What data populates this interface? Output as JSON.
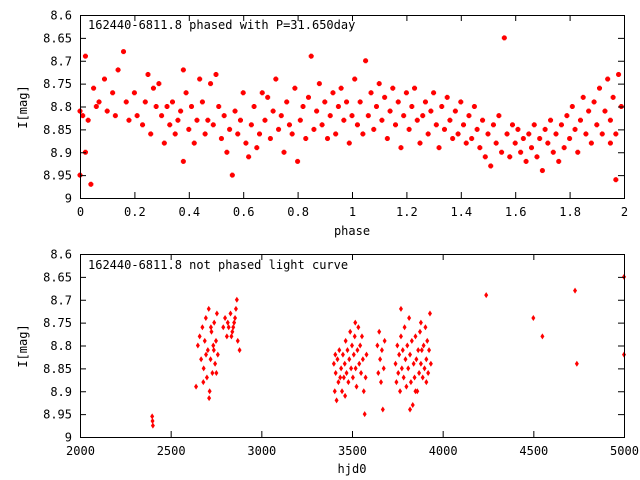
{
  "colors": {
    "points": "#ff0000",
    "axis": "#000000",
    "background": "#ffffff"
  },
  "chart_data": [
    {
      "type": "scatter",
      "title": "162440-6811.8 phased with P=31.650day",
      "xlabel": "phase",
      "ylabel": "I[mag]",
      "xlim": [
        0,
        2
      ],
      "ylim": [
        8.6,
        9.0
      ],
      "y_inverted": true,
      "grid": false,
      "xticks": [
        "0",
        "0.2",
        "0.4",
        "0.6",
        "0.8",
        "1",
        "1.2",
        "1.4",
        "1.6",
        "1.8",
        "2"
      ],
      "yticks": [
        "8.6",
        "8.65",
        "8.7",
        "8.75",
        "8.8",
        "8.85",
        "8.9",
        "8.95",
        "9"
      ],
      "marker": "star",
      "points": [
        [
          0.0,
          8.81
        ],
        [
          0.01,
          8.82
        ],
        [
          0.02,
          8.69
        ],
        [
          0.02,
          8.9
        ],
        [
          0.0,
          8.95
        ],
        [
          0.04,
          8.97
        ],
        [
          0.03,
          8.83
        ],
        [
          0.05,
          8.76
        ],
        [
          0.06,
          8.8
        ],
        [
          0.07,
          8.79
        ],
        [
          0.09,
          8.74
        ],
        [
          0.1,
          8.81
        ],
        [
          0.12,
          8.77
        ],
        [
          0.13,
          8.82
        ],
        [
          0.14,
          8.72
        ],
        [
          0.16,
          8.68
        ],
        [
          0.17,
          8.79
        ],
        [
          0.18,
          8.83
        ],
        [
          0.2,
          8.77
        ],
        [
          0.21,
          8.82
        ],
        [
          0.23,
          8.84
        ],
        [
          0.24,
          8.79
        ],
        [
          0.25,
          8.73
        ],
        [
          0.26,
          8.86
        ],
        [
          0.27,
          8.76
        ],
        [
          0.28,
          8.8
        ],
        [
          0.29,
          8.75
        ],
        [
          0.3,
          8.82
        ],
        [
          0.31,
          8.88
        ],
        [
          0.32,
          8.8
        ],
        [
          0.33,
          8.84
        ],
        [
          0.34,
          8.79
        ],
        [
          0.35,
          8.86
        ],
        [
          0.36,
          8.83
        ],
        [
          0.37,
          8.81
        ],
        [
          0.38,
          8.72
        ],
        [
          0.38,
          8.92
        ],
        [
          0.39,
          8.77
        ],
        [
          0.4,
          8.85
        ],
        [
          0.41,
          8.8
        ],
        [
          0.42,
          8.88
        ],
        [
          0.43,
          8.83
        ],
        [
          0.44,
          8.74
        ],
        [
          0.45,
          8.79
        ],
        [
          0.46,
          8.86
        ],
        [
          0.47,
          8.83
        ],
        [
          0.48,
          8.75
        ],
        [
          0.49,
          8.84
        ],
        [
          0.5,
          8.73
        ],
        [
          0.51,
          8.8
        ],
        [
          0.52,
          8.87
        ],
        [
          0.53,
          8.82
        ],
        [
          0.54,
          8.9
        ],
        [
          0.55,
          8.85
        ],
        [
          0.56,
          8.95
        ],
        [
          0.57,
          8.81
        ],
        [
          0.58,
          8.86
        ],
        [
          0.59,
          8.83
        ],
        [
          0.6,
          8.77
        ],
        [
          0.61,
          8.88
        ],
        [
          0.62,
          8.91
        ],
        [
          0.63,
          8.84
        ],
        [
          0.64,
          8.8
        ],
        [
          0.65,
          8.89
        ],
        [
          0.66,
          8.86
        ],
        [
          0.67,
          8.77
        ],
        [
          0.68,
          8.83
        ],
        [
          0.69,
          8.78
        ],
        [
          0.7,
          8.87
        ],
        [
          0.71,
          8.81
        ],
        [
          0.72,
          8.74
        ],
        [
          0.73,
          8.85
        ],
        [
          0.74,
          8.82
        ],
        [
          0.75,
          8.9
        ],
        [
          0.76,
          8.79
        ],
        [
          0.77,
          8.84
        ],
        [
          0.78,
          8.86
        ],
        [
          0.79,
          8.76
        ],
        [
          0.8,
          8.92
        ],
        [
          0.81,
          8.83
        ],
        [
          0.82,
          8.8
        ],
        [
          0.83,
          8.87
        ],
        [
          0.84,
          8.78
        ],
        [
          0.85,
          8.69
        ],
        [
          0.86,
          8.85
        ],
        [
          0.87,
          8.81
        ],
        [
          0.88,
          8.75
        ],
        [
          0.89,
          8.84
        ],
        [
          0.9,
          8.79
        ],
        [
          0.91,
          8.87
        ],
        [
          0.92,
          8.82
        ],
        [
          0.93,
          8.77
        ],
        [
          0.94,
          8.86
        ],
        [
          0.95,
          8.8
        ],
        [
          0.96,
          8.76
        ],
        [
          0.97,
          8.83
        ],
        [
          0.98,
          8.79
        ],
        [
          0.99,
          8.88
        ],
        [
          1.0,
          8.82
        ],
        [
          1.01,
          8.74
        ],
        [
          1.02,
          8.84
        ],
        [
          1.03,
          8.79
        ],
        [
          1.04,
          8.86
        ],
        [
          1.05,
          8.7
        ],
        [
          1.06,
          8.82
        ],
        [
          1.07,
          8.77
        ],
        [
          1.08,
          8.85
        ],
        [
          1.09,
          8.8
        ],
        [
          1.1,
          8.75
        ],
        [
          1.11,
          8.83
        ],
        [
          1.12,
          8.78
        ],
        [
          1.13,
          8.87
        ],
        [
          1.14,
          8.81
        ],
        [
          1.15,
          8.76
        ],
        [
          1.16,
          8.84
        ],
        [
          1.17,
          8.79
        ],
        [
          1.18,
          8.89
        ],
        [
          1.19,
          8.82
        ],
        [
          1.2,
          8.77
        ],
        [
          1.21,
          8.85
        ],
        [
          1.22,
          8.8
        ],
        [
          1.23,
          8.76
        ],
        [
          1.24,
          8.83
        ],
        [
          1.25,
          8.88
        ],
        [
          1.26,
          8.82
        ],
        [
          1.27,
          8.79
        ],
        [
          1.28,
          8.86
        ],
        [
          1.29,
          8.81
        ],
        [
          1.3,
          8.77
        ],
        [
          1.31,
          8.84
        ],
        [
          1.32,
          8.89
        ],
        [
          1.33,
          8.8
        ],
        [
          1.34,
          8.85
        ],
        [
          1.35,
          8.78
        ],
        [
          1.36,
          8.83
        ],
        [
          1.37,
          8.87
        ],
        [
          1.38,
          8.81
        ],
        [
          1.39,
          8.86
        ],
        [
          1.4,
          8.79
        ],
        [
          1.41,
          8.84
        ],
        [
          1.42,
          8.88
        ],
        [
          1.43,
          8.82
        ],
        [
          1.44,
          8.87
        ],
        [
          1.45,
          8.8
        ],
        [
          1.46,
          8.85
        ],
        [
          1.47,
          8.89
        ],
        [
          1.48,
          8.83
        ],
        [
          1.49,
          8.91
        ],
        [
          1.5,
          8.86
        ],
        [
          1.51,
          8.93
        ],
        [
          1.52,
          8.84
        ],
        [
          1.53,
          8.88
        ],
        [
          1.54,
          8.82
        ],
        [
          1.55,
          8.9
        ],
        [
          1.56,
          8.65
        ],
        [
          1.57,
          8.86
        ],
        [
          1.58,
          8.91
        ],
        [
          1.59,
          8.84
        ],
        [
          1.6,
          8.88
        ],
        [
          1.61,
          8.85
        ],
        [
          1.62,
          8.9
        ],
        [
          1.63,
          8.87
        ],
        [
          1.64,
          8.92
        ],
        [
          1.65,
          8.86
        ],
        [
          1.66,
          8.89
        ],
        [
          1.67,
          8.84
        ],
        [
          1.68,
          8.91
        ],
        [
          1.69,
          8.87
        ],
        [
          1.7,
          8.94
        ],
        [
          1.71,
          8.85
        ],
        [
          1.72,
          8.88
        ],
        [
          1.73,
          8.83
        ],
        [
          1.74,
          8.9
        ],
        [
          1.75,
          8.86
        ],
        [
          1.76,
          8.92
        ],
        [
          1.77,
          8.84
        ],
        [
          1.78,
          8.89
        ],
        [
          1.79,
          8.82
        ],
        [
          1.8,
          8.87
        ],
        [
          1.81,
          8.8
        ],
        [
          1.82,
          8.85
        ],
        [
          1.83,
          8.9
        ],
        [
          1.84,
          8.83
        ],
        [
          1.85,
          8.78
        ],
        [
          1.86,
          8.86
        ],
        [
          1.87,
          8.81
        ],
        [
          1.88,
          8.88
        ],
        [
          1.89,
          8.79
        ],
        [
          1.9,
          8.84
        ],
        [
          1.91,
          8.76
        ],
        [
          1.92,
          8.86
        ],
        [
          1.93,
          8.81
        ],
        [
          1.94,
          8.74
        ],
        [
          1.95,
          8.83
        ],
        [
          1.96,
          8.78
        ],
        [
          1.97,
          8.96
        ],
        [
          1.98,
          8.73
        ],
        [
          1.99,
          8.8
        ],
        [
          1.97,
          8.86
        ],
        [
          1.95,
          8.88
        ]
      ]
    },
    {
      "type": "scatter",
      "title": "162440-6811.8 not phased light curve",
      "xlabel": "hjd0",
      "ylabel": "I[mag]",
      "xlim": [
        2000,
        5000
      ],
      "ylim": [
        8.6,
        9.0
      ],
      "y_inverted": true,
      "grid": false,
      "xticks": [
        "2000",
        "2500",
        "3000",
        "3500",
        "4000",
        "4500",
        "5000"
      ],
      "yticks": [
        "8.6",
        "8.65",
        "8.7",
        "8.75",
        "8.8",
        "8.85",
        "8.9",
        "8.95",
        "9"
      ],
      "marker": "diamond",
      "points": [
        [
          2398,
          8.955
        ],
        [
          2400,
          8.965
        ],
        [
          2402,
          8.975
        ],
        [
          2640,
          8.89
        ],
        [
          2650,
          8.8
        ],
        [
          2660,
          8.78
        ],
        [
          2668,
          8.83
        ],
        [
          2675,
          8.76
        ],
        [
          2682,
          8.85
        ],
        [
          2688,
          8.79
        ],
        [
          2694,
          8.74
        ],
        [
          2700,
          8.87
        ],
        [
          2705,
          8.81
        ],
        [
          2710,
          8.72
        ],
        [
          2715,
          8.9
        ],
        [
          2720,
          8.83
        ],
        [
          2725,
          8.77
        ],
        [
          2730,
          8.86
        ],
        [
          2735,
          8.8
        ],
        [
          2740,
          8.75
        ],
        [
          2745,
          8.84
        ],
        [
          2750,
          8.79
        ],
        [
          2755,
          8.73
        ],
        [
          2760,
          8.82
        ],
        [
          2680,
          8.88
        ],
        [
          2695,
          8.82
        ],
        [
          2712,
          8.915
        ],
        [
          2722,
          8.76
        ],
        [
          2738,
          8.81
        ],
        [
          2752,
          8.86
        ],
        [
          2790,
          8.76
        ],
        [
          2800,
          8.74
        ],
        [
          2810,
          8.78
        ],
        [
          2820,
          8.76
        ],
        [
          2830,
          8.73
        ],
        [
          2840,
          8.77
        ],
        [
          2850,
          8.75
        ],
        [
          2860,
          8.72
        ],
        [
          2870,
          8.79
        ],
        [
          2880,
          8.81
        ],
        [
          2815,
          8.75
        ],
        [
          2835,
          8.78
        ],
        [
          2855,
          8.74
        ],
        [
          2865,
          8.7
        ],
        [
          2845,
          8.76
        ],
        [
          3400,
          8.84
        ],
        [
          3405,
          8.9
        ],
        [
          3410,
          8.86
        ],
        [
          3415,
          8.92
        ],
        [
          3420,
          8.83
        ],
        [
          3425,
          8.88
        ],
        [
          3430,
          8.81
        ],
        [
          3435,
          8.87
        ],
        [
          3440,
          8.85
        ],
        [
          3445,
          8.9
        ],
        [
          3450,
          8.82
        ],
        [
          3455,
          8.87
        ],
        [
          3460,
          8.84
        ],
        [
          3465,
          8.79
        ],
        [
          3470,
          8.86
        ],
        [
          3475,
          8.81
        ],
        [
          3480,
          8.88
        ],
        [
          3485,
          8.83
        ],
        [
          3490,
          8.77
        ],
        [
          3495,
          8.85
        ],
        [
          3500,
          8.8
        ],
        [
          3505,
          8.87
        ],
        [
          3510,
          8.82
        ],
        [
          3515,
          8.78
        ],
        [
          3520,
          8.85
        ],
        [
          3525,
          8.89
        ],
        [
          3530,
          8.81
        ],
        [
          3535,
          8.76
        ],
        [
          3540,
          8.84
        ],
        [
          3545,
          8.8
        ],
        [
          3550,
          8.86
        ],
        [
          3555,
          8.78
        ],
        [
          3560,
          8.83
        ],
        [
          3565,
          8.9
        ],
        [
          3570,
          8.95
        ],
        [
          3575,
          8.87
        ],
        [
          3580,
          8.82
        ],
        [
          3408,
          8.82
        ],
        [
          3462,
          8.91
        ],
        [
          3518,
          8.75
        ],
        [
          3640,
          8.8
        ],
        [
          3645,
          8.86
        ],
        [
          3650,
          8.77
        ],
        [
          3655,
          8.83
        ],
        [
          3660,
          8.88
        ],
        [
          3665,
          8.81
        ],
        [
          3670,
          8.94
        ],
        [
          3675,
          8.85
        ],
        [
          3680,
          8.79
        ],
        [
          3740,
          8.84
        ],
        [
          3745,
          8.88
        ],
        [
          3750,
          8.8
        ],
        [
          3755,
          8.86
        ],
        [
          3760,
          8.82
        ],
        [
          3765,
          8.9
        ],
        [
          3770,
          8.78
        ],
        [
          3775,
          8.85
        ],
        [
          3780,
          8.81
        ],
        [
          3785,
          8.87
        ],
        [
          3790,
          8.76
        ],
        [
          3795,
          8.83
        ],
        [
          3800,
          8.89
        ],
        [
          3805,
          8.8
        ],
        [
          3810,
          8.85
        ],
        [
          3815,
          8.74
        ],
        [
          3820,
          8.82
        ],
        [
          3825,
          8.88
        ],
        [
          3830,
          8.79
        ],
        [
          3835,
          8.93
        ],
        [
          3840,
          8.84
        ],
        [
          3845,
          8.87
        ],
        [
          3850,
          8.78
        ],
        [
          3855,
          8.83
        ],
        [
          3860,
          8.9
        ],
        [
          3865,
          8.81
        ],
        [
          3870,
          8.86
        ],
        [
          3875,
          8.77
        ],
        [
          3880,
          8.84
        ],
        [
          3885,
          8.81
        ],
        [
          3890,
          8.87
        ],
        [
          3895,
          8.8
        ],
        [
          3900,
          8.85
        ],
        [
          3905,
          8.76
        ],
        [
          3910,
          8.83
        ],
        [
          3915,
          8.79
        ],
        [
          3920,
          8.86
        ],
        [
          3925,
          8.81
        ],
        [
          3930,
          8.73
        ],
        [
          3935,
          8.84
        ],
        [
          3770,
          8.72
        ],
        [
          3820,
          8.94
        ],
        [
          3880,
          8.75
        ],
        [
          3850,
          8.9
        ],
        [
          3910,
          8.88
        ],
        [
          4240,
          8.69
        ],
        [
          4500,
          8.74
        ],
        [
          4550,
          8.78
        ],
        [
          4730,
          8.68
        ],
        [
          4740,
          8.84
        ],
        [
          5000,
          8.65
        ],
        [
          5000,
          8.82
        ]
      ]
    }
  ]
}
